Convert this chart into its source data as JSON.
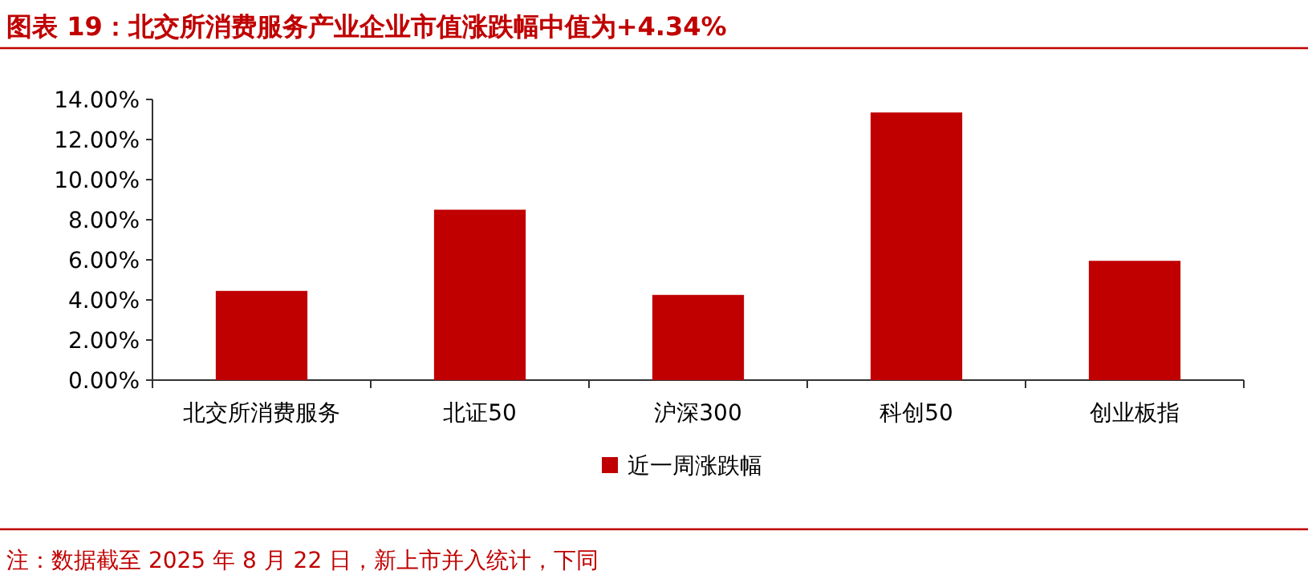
{
  "chart_data": {
    "type": "bar",
    "title": "图表 19：北交所消费服务产业企业市值涨跌幅中值为+4.34%",
    "categories": [
      "北交所消费服务",
      "北证50",
      "沪深300",
      "科创50",
      "创业板指"
    ],
    "series": [
      {
        "name": "近一周涨跌幅",
        "color": "#c00000",
        "values": [
          4.45,
          8.5,
          4.25,
          13.35,
          5.95
        ]
      }
    ],
    "ylim": [
      0,
      14
    ],
    "yticks": [
      {
        "value": 0,
        "label": "0.00%"
      },
      {
        "value": 2,
        "label": "2.00%"
      },
      {
        "value": 4,
        "label": "4.00%"
      },
      {
        "value": 6,
        "label": "6.00%"
      },
      {
        "value": 8,
        "label": "8.00%"
      },
      {
        "value": 10,
        "label": "10.00%"
      },
      {
        "value": 12,
        "label": "12.00%"
      },
      {
        "value": 14,
        "label": "14.00%"
      }
    ],
    "legend": "bottom",
    "annotations": [
      "注：数据截至 2025 年 8 月 22 日，新上市并入统计，下同"
    ]
  }
}
